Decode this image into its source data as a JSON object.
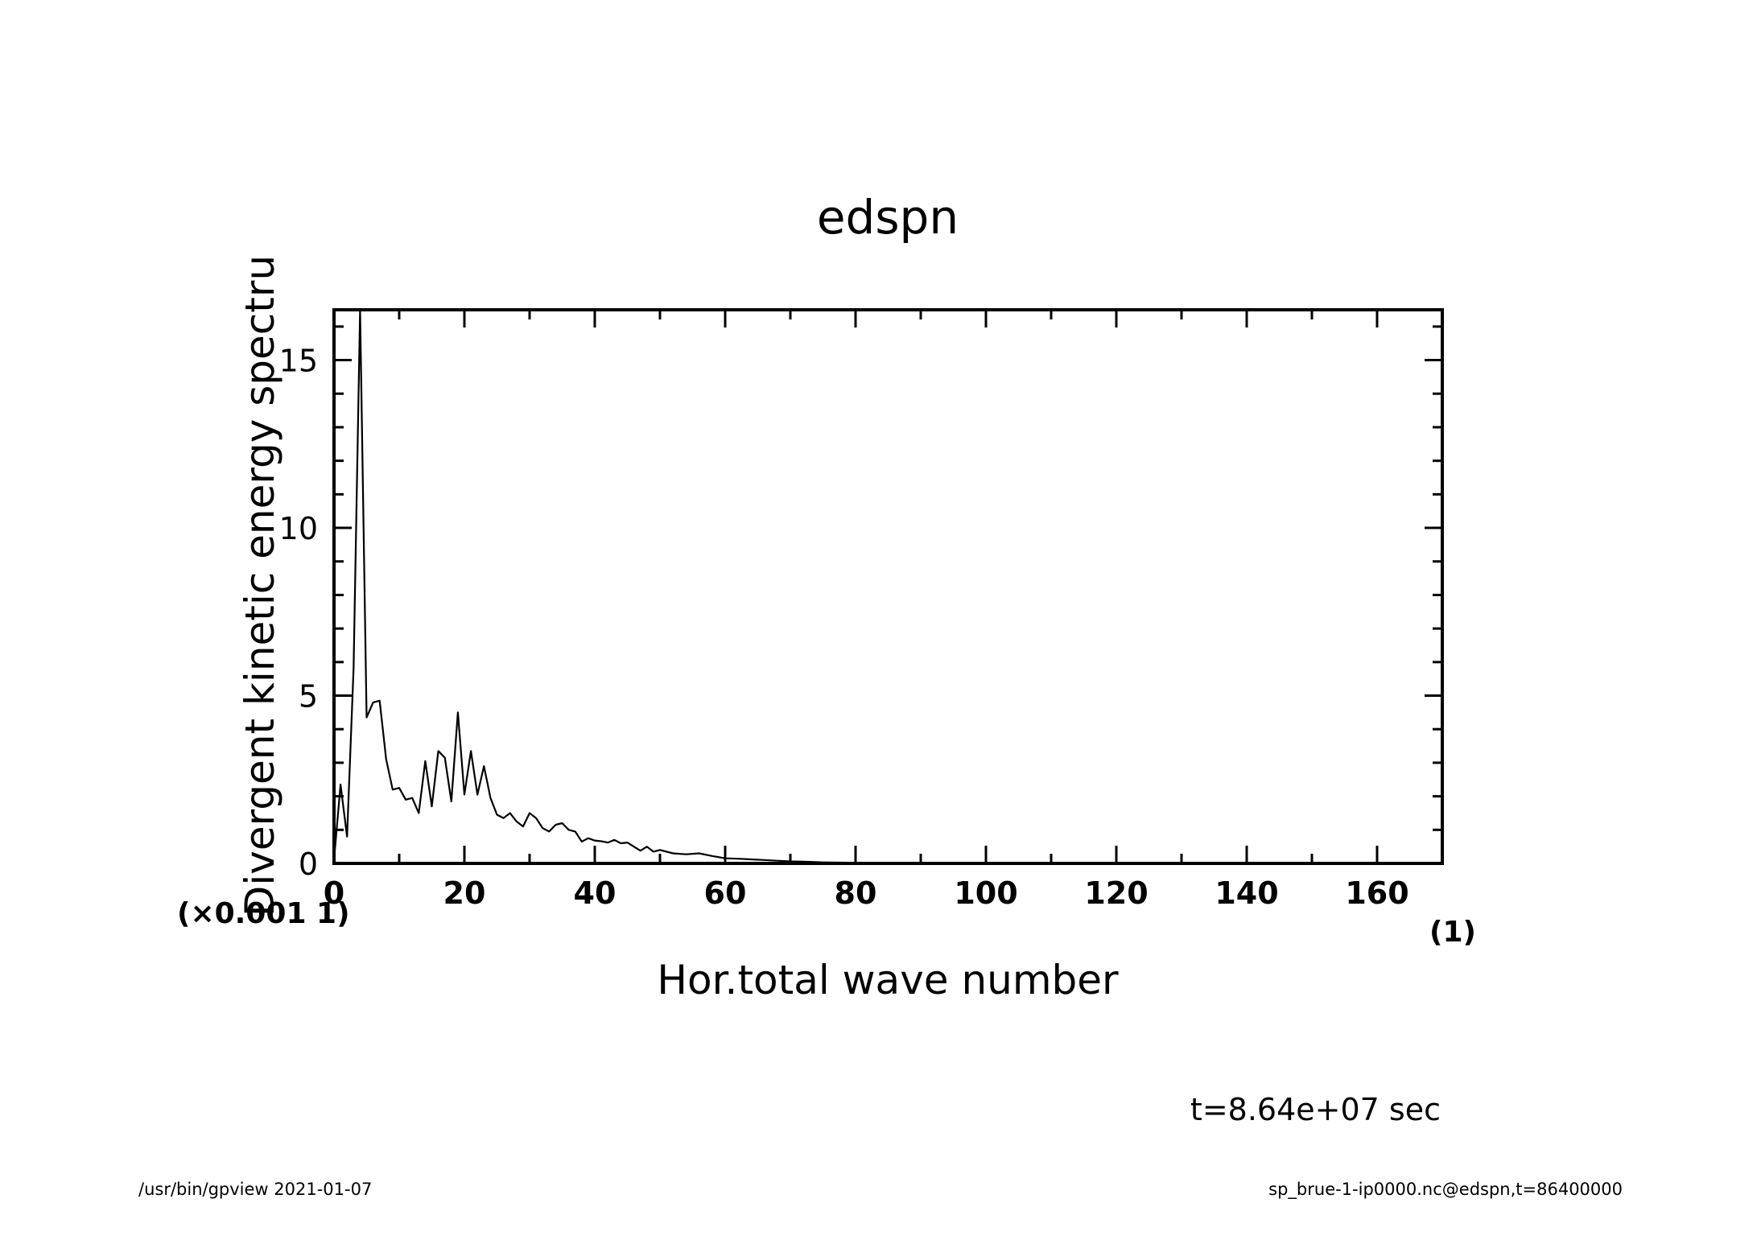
{
  "chart_data": {
    "type": "line",
    "title": "edspn",
    "xlabel": "Hor.total wave number",
    "ylabel": "Divergent kinetic energy spectru",
    "x_unit": "(1)",
    "y_unit": "(×0.001 1)",
    "xlim": [
      0,
      170
    ],
    "ylim": [
      0,
      16.5
    ],
    "x_ticks": [
      "0",
      "20",
      "40",
      "60",
      "80",
      "100",
      "120",
      "140",
      "160"
    ],
    "y_ticks": [
      "0",
      "5",
      "10",
      "15"
    ],
    "grid": false,
    "series": [
      {
        "x": [
          0,
          1,
          2,
          3,
          4,
          5,
          6,
          7,
          8,
          9,
          10,
          11,
          12,
          13,
          14,
          15,
          16,
          17,
          18,
          19,
          20,
          21,
          22,
          23,
          24,
          25,
          26,
          27,
          28,
          29,
          30,
          31,
          32,
          33,
          34,
          35,
          36,
          37,
          38,
          39,
          40,
          41,
          42,
          43,
          44,
          45,
          46,
          47,
          48,
          49,
          50,
          52,
          54,
          56,
          58,
          60,
          62,
          64,
          66,
          68,
          70,
          72,
          75,
          80,
          85,
          90,
          100,
          110,
          120,
          130,
          140,
          150,
          160,
          170
        ],
        "y": [
          0.1,
          2.35,
          0.8,
          5.8,
          16.5,
          4.35,
          4.8,
          4.85,
          3.1,
          2.2,
          2.25,
          1.9,
          1.95,
          1.5,
          3.05,
          1.7,
          3.35,
          3.15,
          1.85,
          4.5,
          2.05,
          3.35,
          2.05,
          2.9,
          1.95,
          1.45,
          1.35,
          1.5,
          1.25,
          1.1,
          1.5,
          1.35,
          1.05,
          0.95,
          1.15,
          1.2,
          1.0,
          0.95,
          0.65,
          0.75,
          0.68,
          0.66,
          0.62,
          0.7,
          0.6,
          0.62,
          0.5,
          0.38,
          0.5,
          0.35,
          0.4,
          0.3,
          0.27,
          0.3,
          0.22,
          0.15,
          0.14,
          0.12,
          0.1,
          0.08,
          0.06,
          0.05,
          0.03,
          0.02,
          0.01,
          0.005,
          0.003,
          0.002,
          0.001,
          0.001,
          0.0,
          0.0,
          0.0,
          0.0
        ]
      }
    ]
  },
  "time_label": "t=8.64e+07 sec",
  "footer": {
    "left": "/usr/bin/gpview   2021-01-07",
    "right": "sp_brue-1-ip0000.nc@edspn,t=86400000"
  }
}
